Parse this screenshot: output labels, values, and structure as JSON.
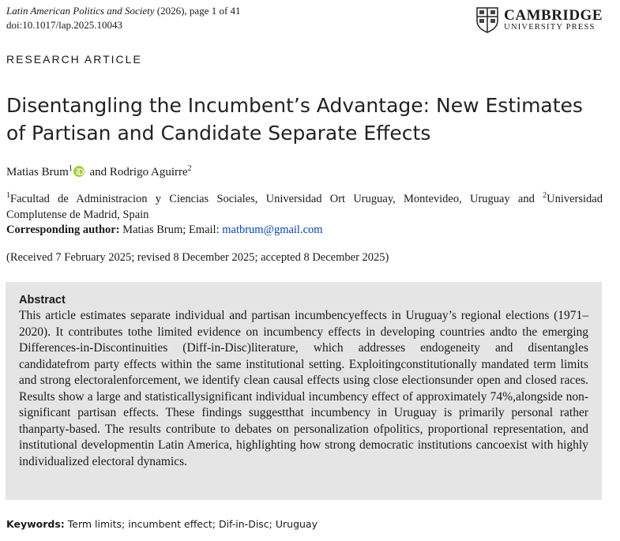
{
  "header": {
    "journal": "Latin American Politics and Society",
    "issue": " (2026), page 1 of 41",
    "doi_prefix": "doi:",
    "doi": "10.1017/lap.2025.10043",
    "publisher": "CAMBRIDGE",
    "publisher_sub": "UNIVERSITY PRESS"
  },
  "article_type": "RESEARCH ARTICLE",
  "title": "Disentangling the Incumbent’s Advantage: New Estimates of Partisan and Candidate Separate Effects",
  "authors": [
    {
      "name": "Matias Brum",
      "affiliation": "1"
    },
    {
      "name": "Rodrigo Aguirre",
      "affiliation": "2"
    }
  ],
  "author_joiner": " and ",
  "affiliations": [
    {
      "mark": "1",
      "text": "Facultad de Administracion y Ciencias Sociales, Universidad Ort Uruguay, Montevideo, Uruguay"
    },
    {
      "mark": "2",
      "text": "Universidad Complutense de Madrid, Spain"
    }
  ],
  "affiliation_joiner": " and ",
  "corresponding": {
    "label": "Corresponding author:",
    "text": " Matias Brum; Email: ",
    "email": "matbrum@gmail.com"
  },
  "history": "(Received 7 February 2025; revised 8 December 2025; accepted 8 December 2025)",
  "abstract": {
    "heading": "Abstract",
    "text": "This article estimates separate individual and partisan incumbencyeffects in Uruguay’s regional elections (1971–2020). It contributes tothe limited evidence on incumbency effects in developing countries andto the emerging Differences-in-Discontinuities (Diff-in-Disc)literature, which addresses endogeneity and disentangles candidatefrom party effects within the same institutional setting. Exploitingconstitutionally mandated term limits and strong electoralenforcement, we identify clean causal effects using close electionsunder open and closed races. Results show a large and statisticallysignificant individual incumbency effect of approximately 74%,alongside non-significant partisan effects. These findings suggestthat incumbency in Uruguay is primarily personal rather thanparty-based. The results contribute to debates on personalization ofpolitics, proportional representation, and institutional developmentin Latin America, highlighting how strong democratic institutions cancoexist with highly individualized electoral dynamics."
  },
  "keywords": {
    "label": "Keywords:",
    "text": " Term limits; incumbent effect; Dif-in-Disc; Uruguay"
  }
}
